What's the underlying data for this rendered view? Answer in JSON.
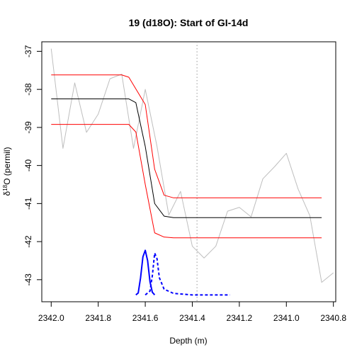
{
  "chart_data": {
    "type": "line",
    "title": "19 (d18O): Start of GI-14d",
    "xlabel": "Depth (m)",
    "ylabel_prefix": "δ",
    "ylabel_sup": "18",
    "ylabel_suffix": "O (permil)",
    "xlim": [
      2342.04,
      2340.79
    ],
    "ylim": [
      -43.58,
      -36.75
    ],
    "x_reversed": true,
    "xticks": [
      2342.0,
      2341.8,
      2341.6,
      2341.4,
      2341.2,
      2341.0,
      2340.8
    ],
    "xtick_labels": [
      "2342.0",
      "2341.8",
      "2341.6",
      "2341.4",
      "2341.2",
      "2341.0",
      "2340.8"
    ],
    "yticks": [
      -37,
      -38,
      -39,
      -40,
      -41,
      -42,
      -43
    ],
    "ytick_labels": [
      "-37",
      "-38",
      "-39",
      "-40",
      "-41",
      "-42",
      "-43"
    ],
    "grid": false,
    "vline": {
      "x": 2341.38,
      "style": "dotted",
      "color": "#999999"
    },
    "series": [
      {
        "kind": "observed",
        "color": "#bebebe",
        "width": 1,
        "points": [
          [
            2342.0,
            -36.93
          ],
          [
            2341.95,
            -39.55
          ],
          [
            2341.9,
            -37.83
          ],
          [
            2341.85,
            -39.13
          ],
          [
            2341.8,
            -38.65
          ],
          [
            2341.75,
            -37.72
          ],
          [
            2341.7,
            -37.6
          ],
          [
            2341.65,
            -39.55
          ],
          [
            2341.6,
            -38.0
          ],
          [
            2341.55,
            -39.5
          ],
          [
            2341.5,
            -41.3
          ],
          [
            2341.45,
            -40.68
          ],
          [
            2341.4,
            -42.12
          ],
          [
            2341.35,
            -42.43
          ],
          [
            2341.3,
            -42.12
          ],
          [
            2341.25,
            -41.2
          ],
          [
            2341.2,
            -41.1
          ],
          [
            2341.15,
            -41.35
          ],
          [
            2341.1,
            -40.35
          ],
          [
            2341.05,
            -40.03
          ],
          [
            2341.0,
            -39.68
          ],
          [
            2340.95,
            -40.62
          ],
          [
            2340.9,
            -41.32
          ],
          [
            2340.85,
            -43.07
          ],
          [
            2340.8,
            -42.82
          ]
        ]
      },
      {
        "kind": "fit-upper",
        "color": "#ff0000",
        "width": 1,
        "points": [
          [
            2342.0,
            -37.62
          ],
          [
            2341.7,
            -37.62
          ],
          [
            2341.67,
            -37.68
          ],
          [
            2341.6,
            -38.4
          ],
          [
            2341.56,
            -40.1
          ],
          [
            2341.52,
            -40.78
          ],
          [
            2341.48,
            -40.85
          ],
          [
            2340.85,
            -40.85
          ]
        ]
      },
      {
        "kind": "fit-median",
        "color": "#000000",
        "width": 1,
        "points": [
          [
            2342.0,
            -38.25
          ],
          [
            2341.67,
            -38.25
          ],
          [
            2341.64,
            -38.35
          ],
          [
            2341.6,
            -39.5
          ],
          [
            2341.56,
            -41.0
          ],
          [
            2341.52,
            -41.33
          ],
          [
            2341.48,
            -41.37
          ],
          [
            2340.85,
            -41.37
          ]
        ]
      },
      {
        "kind": "fit-lower",
        "color": "#ff0000",
        "width": 1,
        "points": [
          [
            2342.0,
            -38.92
          ],
          [
            2341.67,
            -38.92
          ],
          [
            2341.64,
            -39.12
          ],
          [
            2341.6,
            -40.5
          ],
          [
            2341.56,
            -41.77
          ],
          [
            2341.52,
            -41.88
          ],
          [
            2341.48,
            -41.9
          ],
          [
            2340.85,
            -41.9
          ]
        ]
      },
      {
        "kind": "onset-density",
        "color": "#0000ff",
        "width": 2,
        "dash": false,
        "points": [
          [
            2341.64,
            -43.4
          ],
          [
            2341.63,
            -43.35
          ],
          [
            2341.62,
            -42.95
          ],
          [
            2341.61,
            -42.4
          ],
          [
            2341.6,
            -42.23
          ],
          [
            2341.59,
            -42.5
          ],
          [
            2341.58,
            -43.05
          ],
          [
            2341.57,
            -43.33
          ],
          [
            2341.56,
            -43.4
          ]
        ]
      },
      {
        "kind": "end-density",
        "color": "#0000ff",
        "width": 2,
        "dash": true,
        "points": [
          [
            2341.6,
            -43.4
          ],
          [
            2341.58,
            -43.3
          ],
          [
            2341.57,
            -42.9
          ],
          [
            2341.56,
            -42.3
          ],
          [
            2341.55,
            -42.45
          ],
          [
            2341.54,
            -42.95
          ],
          [
            2341.52,
            -43.25
          ],
          [
            2341.48,
            -43.36
          ],
          [
            2341.4,
            -43.4
          ],
          [
            2341.24,
            -43.4
          ]
        ]
      }
    ]
  }
}
